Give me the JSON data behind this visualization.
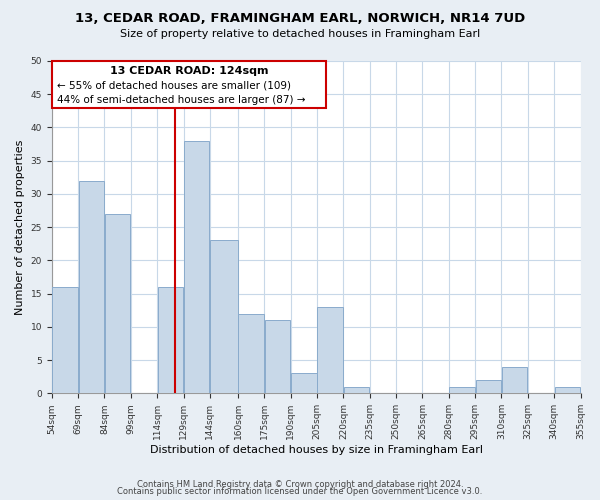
{
  "title": "13, CEDAR ROAD, FRAMINGHAM EARL, NORWICH, NR14 7UD",
  "subtitle": "Size of property relative to detached houses in Framingham Earl",
  "xlabel": "Distribution of detached houses by size in Framingham Earl",
  "ylabel": "Number of detached properties",
  "bar_color": "#c8d8e8",
  "bar_edge_color": "#8aabcc",
  "reference_line_x": 124,
  "reference_line_color": "#cc0000",
  "annotation_title": "13 CEDAR ROAD: 124sqm",
  "annotation_line1": "← 55% of detached houses are smaller (109)",
  "annotation_line2": "44% of semi-detached houses are larger (87) →",
  "bins": [
    54,
    69,
    84,
    99,
    114,
    129,
    144,
    160,
    175,
    190,
    205,
    220,
    235,
    250,
    265,
    280,
    295,
    310,
    325,
    340,
    355
  ],
  "values": [
    16,
    32,
    27,
    0,
    16,
    38,
    23,
    12,
    11,
    3,
    13,
    1,
    0,
    0,
    0,
    1,
    2,
    4,
    0,
    1
  ],
  "ylim": [
    0,
    50
  ],
  "yticks": [
    0,
    5,
    10,
    15,
    20,
    25,
    30,
    35,
    40,
    45,
    50
  ],
  "footer1": "Contains HM Land Registry data © Crown copyright and database right 2024.",
  "footer2": "Contains public sector information licensed under the Open Government Licence v3.0.",
  "bg_color": "#e8eef4",
  "plot_bg_color": "#ffffff"
}
